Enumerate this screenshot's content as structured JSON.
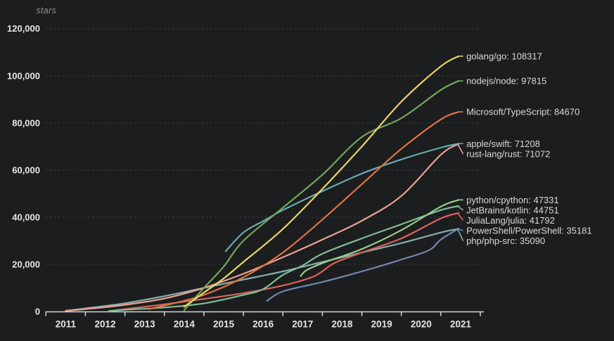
{
  "chart_data": {
    "type": "line",
    "title": "",
    "ylabel": "stars",
    "xlabel": "",
    "x_tick_labels": [
      "2011",
      "2012",
      "2013",
      "2014",
      "2015",
      "2016",
      "2017",
      "2018",
      "2019",
      "2020",
      "2021"
    ],
    "y_tick_labels": [
      "0",
      "20,000",
      "40,000",
      "60,000",
      "80,000",
      "100,000",
      "120,000"
    ],
    "ylim": [
      0,
      120000
    ],
    "xlim": [
      2011,
      2022
    ],
    "grid": "horizontal-dashed",
    "legend_position": "right-edge-labels",
    "series": [
      {
        "name": "php/php-src",
        "value": 35090,
        "label": "php/php-src: 35090",
        "color": "#87adad",
        "points": [
          [
            2011.5,
            300
          ],
          [
            2012,
            1300
          ],
          [
            2013,
            3500
          ],
          [
            2014,
            6500
          ],
          [
            2015,
            10000
          ],
          [
            2016,
            13500
          ],
          [
            2017,
            17000
          ],
          [
            2018,
            21000
          ],
          [
            2019,
            25000
          ],
          [
            2020,
            29000
          ],
          [
            2021,
            33500
          ],
          [
            2021.45,
            35090
          ]
        ]
      },
      {
        "name": "PowerShell/PowerShell",
        "value": 35181,
        "label": "PowerShell/PowerShell: 35181",
        "color": "#7187ae",
        "points": [
          [
            2016.6,
            4500
          ],
          [
            2017,
            8500
          ],
          [
            2018,
            12500
          ],
          [
            2019,
            17000
          ],
          [
            2020,
            22000
          ],
          [
            2020.7,
            26000
          ],
          [
            2021,
            30500
          ],
          [
            2021.45,
            35181
          ]
        ]
      },
      {
        "name": "JuliaLang/julia",
        "value": 41792,
        "label": "JuliaLang/julia: 41792",
        "color": "#d9645a",
        "points": [
          [
            2012.6,
            150
          ],
          [
            2013,
            1000
          ],
          [
            2014,
            3000
          ],
          [
            2015,
            5300
          ],
          [
            2016,
            7800
          ],
          [
            2017,
            11000
          ],
          [
            2017.8,
            15000
          ],
          [
            2018.3,
            20500
          ],
          [
            2019,
            25000
          ],
          [
            2020,
            31000
          ],
          [
            2021,
            39500
          ],
          [
            2021.45,
            41792
          ]
        ]
      },
      {
        "name": "JetBrains/kotlin",
        "value": 44751,
        "label": "JetBrains/kotlin: 44751",
        "color": "#7dbf97",
        "points": [
          [
            2012.6,
            200
          ],
          [
            2013,
            700
          ],
          [
            2014,
            1700
          ],
          [
            2015,
            3400
          ],
          [
            2016,
            7000
          ],
          [
            2016.5,
            9500
          ],
          [
            2017,
            15500
          ],
          [
            2017.5,
            19500
          ],
          [
            2018,
            24500
          ],
          [
            2019,
            31000
          ],
          [
            2020,
            37000
          ],
          [
            2021,
            43000
          ],
          [
            2021.45,
            44751
          ]
        ]
      },
      {
        "name": "python/cpython",
        "value": 47331,
        "label": "python/cpython: 47331",
        "color": "#98cd8b",
        "points": [
          [
            2017.45,
            15000
          ],
          [
            2017.6,
            17500
          ],
          [
            2018,
            20500
          ],
          [
            2019,
            26500
          ],
          [
            2020,
            34500
          ],
          [
            2021,
            44500
          ],
          [
            2021.45,
            47331
          ]
        ]
      },
      {
        "name": "rust-lang/rust",
        "value": 71072,
        "label": "rust-lang/rust: 71072",
        "color": "#eca293",
        "points": [
          [
            2011.5,
            300
          ],
          [
            2012,
            1000
          ],
          [
            2013,
            2800
          ],
          [
            2014,
            5500
          ],
          [
            2015,
            10000
          ],
          [
            2016,
            16000
          ],
          [
            2017,
            23000
          ],
          [
            2018,
            30500
          ],
          [
            2019,
            38500
          ],
          [
            2020,
            49000
          ],
          [
            2021,
            66500
          ],
          [
            2021.45,
            71072
          ]
        ]
      },
      {
        "name": "apple/swift",
        "value": 71208,
        "label": "apple/swift: 71208",
        "color": "#67abb2",
        "points": [
          [
            2015.55,
            25500
          ],
          [
            2016,
            33500
          ],
          [
            2016.52,
            38500
          ],
          [
            2017,
            43000
          ],
          [
            2018,
            51000
          ],
          [
            2019,
            58500
          ],
          [
            2020,
            64500
          ],
          [
            2021,
            69500
          ],
          [
            2021.45,
            71208
          ]
        ]
      },
      {
        "name": "Microsoft/TypeScript",
        "value": 84670,
        "label": "Microsoft/TypeScript: 84670",
        "color": "#e0743f",
        "points": [
          [
            2013.6,
            1000
          ],
          [
            2014,
            2500
          ],
          [
            2015,
            7000
          ],
          [
            2016,
            14500
          ],
          [
            2017,
            25000
          ],
          [
            2018,
            39000
          ],
          [
            2019,
            54000
          ],
          [
            2020,
            69000
          ],
          [
            2021,
            81500
          ],
          [
            2021.45,
            84670
          ]
        ]
      },
      {
        "name": "nodejs/node",
        "value": 97815,
        "label": "nodejs/node: 97815",
        "color": "#74a75a",
        "points": [
          [
            2014.5,
            500
          ],
          [
            2015,
            10000
          ],
          [
            2015.5,
            19000
          ],
          [
            2016,
            30000
          ],
          [
            2017,
            44000
          ],
          [
            2018,
            58000
          ],
          [
            2019,
            74000
          ],
          [
            2020,
            82000
          ],
          [
            2021,
            94000
          ],
          [
            2021.45,
            97815
          ]
        ]
      },
      {
        "name": "golang/go",
        "value": 108317,
        "label": "golang/go: 108317",
        "color": "#e9d662",
        "points": [
          [
            2014.5,
            2000
          ],
          [
            2015,
            8000
          ],
          [
            2015.5,
            14000
          ],
          [
            2016,
            21000
          ],
          [
            2017,
            35000
          ],
          [
            2018,
            52000
          ],
          [
            2019,
            70000
          ],
          [
            2020,
            89000
          ],
          [
            2021,
            104000
          ],
          [
            2021.45,
            108317
          ]
        ]
      }
    ]
  },
  "colors": {
    "background": "#1c1d1f",
    "axis": "#d6d6d6",
    "grid": "#43444a",
    "tick_text": "#e6e6e6",
    "series_label_text": "#d9d9d9",
    "ylabel_text": "#909090"
  }
}
